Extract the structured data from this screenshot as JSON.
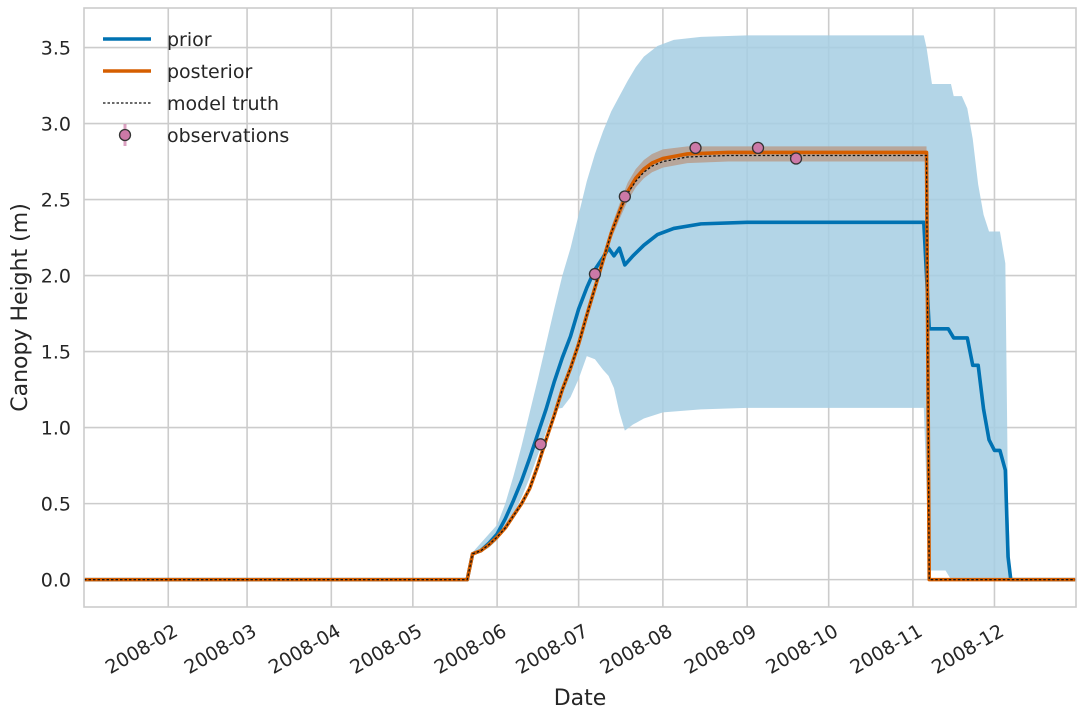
{
  "chart_data": {
    "type": "line",
    "title": "",
    "xlabel": "Date",
    "ylabel": "Canopy Height (m)",
    "x_is_date": true,
    "xlim": [
      "2008-01-01",
      "2008-12-31"
    ],
    "ylim": [
      -0.18,
      3.76
    ],
    "grid": true,
    "legend_position": "top-left",
    "x_ticks": [
      "2008-02-01",
      "2008-03-01",
      "2008-04-01",
      "2008-05-01",
      "2008-06-01",
      "2008-07-01",
      "2008-08-01",
      "2008-09-01",
      "2008-10-01",
      "2008-11-01",
      "2008-12-01"
    ],
    "x_tick_labels": [
      "2008-02",
      "2008-03",
      "2008-04",
      "2008-05",
      "2008-06",
      "2008-07",
      "2008-08",
      "2008-09",
      "2008-10",
      "2008-11",
      "2008-12"
    ],
    "y_ticks": [
      0.0,
      0.5,
      1.0,
      1.5,
      2.0,
      2.5,
      3.0,
      3.5
    ],
    "y_tick_labels": [
      "0.0",
      "0.5",
      "1.0",
      "1.5",
      "2.0",
      "2.5",
      "3.0",
      "3.5"
    ],
    "colors": {
      "prior": "#0072b2",
      "prior_band": "#a6cee3",
      "posterior": "#d55e00",
      "posterior_band": "#b7a192",
      "truth": "#111111",
      "obs_fill": "#cc79a7",
      "obs_edge": "#333333",
      "grid": "#cccccc",
      "frame": "#cccccc"
    },
    "series": [
      {
        "name": "prior",
        "kind": "line",
        "points": [
          [
            "2008-01-01",
            0
          ],
          [
            "2008-05-21",
            0
          ],
          [
            "2008-05-23",
            0.17
          ],
          [
            "2008-05-26",
            0.19
          ],
          [
            "2008-05-29",
            0.24
          ],
          [
            "2008-06-01",
            0.3
          ],
          [
            "2008-06-04",
            0.4
          ],
          [
            "2008-06-07",
            0.52
          ],
          [
            "2008-06-10",
            0.65
          ],
          [
            "2008-06-13",
            0.8
          ],
          [
            "2008-06-16",
            0.96
          ],
          [
            "2008-06-19",
            1.12
          ],
          [
            "2008-06-22",
            1.3
          ],
          [
            "2008-06-25",
            1.46
          ],
          [
            "2008-06-28",
            1.6
          ],
          [
            "2008-07-01",
            1.78
          ],
          [
            "2008-07-04",
            1.92
          ],
          [
            "2008-07-07",
            2.04
          ],
          [
            "2008-07-10",
            2.12
          ],
          [
            "2008-07-12",
            2.18
          ],
          [
            "2008-07-14",
            2.13
          ],
          [
            "2008-07-16",
            2.18
          ],
          [
            "2008-07-18",
            2.07
          ],
          [
            "2008-07-21",
            2.13
          ],
          [
            "2008-07-25",
            2.2
          ],
          [
            "2008-07-30",
            2.27
          ],
          [
            "2008-08-05",
            2.31
          ],
          [
            "2008-08-15",
            2.34
          ],
          [
            "2008-09-01",
            2.35
          ],
          [
            "2008-11-05",
            2.35
          ],
          [
            "2008-11-07",
            1.65
          ],
          [
            "2008-11-14",
            1.65
          ],
          [
            "2008-11-16",
            1.59
          ],
          [
            "2008-11-21",
            1.59
          ],
          [
            "2008-11-23",
            1.41
          ],
          [
            "2008-11-25",
            1.41
          ],
          [
            "2008-11-27",
            1.12
          ],
          [
            "2008-11-29",
            0.92
          ],
          [
            "2008-12-01",
            0.85
          ],
          [
            "2008-12-03",
            0.85
          ],
          [
            "2008-12-05",
            0.72
          ],
          [
            "2008-12-06",
            0.15
          ],
          [
            "2008-12-07",
            0
          ],
          [
            "2008-12-31",
            0
          ]
        ]
      },
      {
        "name": "prior_band",
        "kind": "band",
        "upper": [
          [
            "2008-01-01",
            0
          ],
          [
            "2008-05-21",
            0
          ],
          [
            "2008-05-23",
            0.18
          ],
          [
            "2008-05-26",
            0.24
          ],
          [
            "2008-05-29",
            0.3
          ],
          [
            "2008-06-01",
            0.36
          ],
          [
            "2008-06-04",
            0.5
          ],
          [
            "2008-06-07",
            0.68
          ],
          [
            "2008-06-10",
            0.88
          ],
          [
            "2008-06-13",
            1.1
          ],
          [
            "2008-06-16",
            1.32
          ],
          [
            "2008-06-19",
            1.55
          ],
          [
            "2008-06-22",
            1.78
          ],
          [
            "2008-06-25",
            2.0
          ],
          [
            "2008-06-28",
            2.18
          ],
          [
            "2008-07-01",
            2.4
          ],
          [
            "2008-07-04",
            2.62
          ],
          [
            "2008-07-07",
            2.8
          ],
          [
            "2008-07-10",
            2.95
          ],
          [
            "2008-07-13",
            3.08
          ],
          [
            "2008-07-16",
            3.18
          ],
          [
            "2008-07-19",
            3.28
          ],
          [
            "2008-07-22",
            3.37
          ],
          [
            "2008-07-25",
            3.44
          ],
          [
            "2008-07-30",
            3.51
          ],
          [
            "2008-08-05",
            3.55
          ],
          [
            "2008-08-15",
            3.57
          ],
          [
            "2008-09-01",
            3.58
          ],
          [
            "2008-11-05",
            3.58
          ],
          [
            "2008-11-06",
            3.5
          ],
          [
            "2008-11-08",
            3.26
          ],
          [
            "2008-11-15",
            3.26
          ],
          [
            "2008-11-16",
            3.18
          ],
          [
            "2008-11-19",
            3.18
          ],
          [
            "2008-11-21",
            3.1
          ],
          [
            "2008-11-23",
            2.9
          ],
          [
            "2008-11-25",
            2.6
          ],
          [
            "2008-11-27",
            2.4
          ],
          [
            "2008-11-29",
            2.29
          ],
          [
            "2008-12-03",
            2.29
          ],
          [
            "2008-12-05",
            2.08
          ],
          [
            "2008-12-06",
            0.5
          ],
          [
            "2008-12-07",
            0
          ],
          [
            "2008-12-31",
            0
          ]
        ],
        "lower": [
          [
            "2008-01-01",
            0
          ],
          [
            "2008-05-21",
            0
          ],
          [
            "2008-05-23",
            0.16
          ],
          [
            "2008-05-26",
            0.18
          ],
          [
            "2008-05-29",
            0.21
          ],
          [
            "2008-06-01",
            0.26
          ],
          [
            "2008-06-04",
            0.34
          ],
          [
            "2008-06-07",
            0.43
          ],
          [
            "2008-06-10",
            0.54
          ],
          [
            "2008-06-13",
            0.67
          ],
          [
            "2008-06-16",
            0.82
          ],
          [
            "2008-06-19",
            0.97
          ],
          [
            "2008-06-22",
            1.12
          ],
          [
            "2008-06-25",
            1.13
          ],
          [
            "2008-06-28",
            1.2
          ],
          [
            "2008-07-01",
            1.32
          ],
          [
            "2008-07-04",
            1.47
          ],
          [
            "2008-07-07",
            1.45
          ],
          [
            "2008-07-10",
            1.38
          ],
          [
            "2008-07-12",
            1.34
          ],
          [
            "2008-07-14",
            1.26
          ],
          [
            "2008-07-16",
            1.1
          ],
          [
            "2008-07-18",
            0.98
          ],
          [
            "2008-07-21",
            1.02
          ],
          [
            "2008-07-25",
            1.06
          ],
          [
            "2008-08-01",
            1.1
          ],
          [
            "2008-08-15",
            1.12
          ],
          [
            "2008-09-01",
            1.13
          ],
          [
            "2008-11-05",
            1.13
          ],
          [
            "2008-11-06",
            0.6
          ],
          [
            "2008-11-07",
            0.06
          ],
          [
            "2008-11-13",
            0.06
          ],
          [
            "2008-11-15",
            0
          ],
          [
            "2008-12-31",
            0
          ]
        ]
      },
      {
        "name": "posterior",
        "kind": "line",
        "points": [
          [
            "2008-01-01",
            0
          ],
          [
            "2008-05-21",
            0
          ],
          [
            "2008-05-23",
            0.17
          ],
          [
            "2008-05-26",
            0.19
          ],
          [
            "2008-05-29",
            0.23
          ],
          [
            "2008-06-01",
            0.28
          ],
          [
            "2008-06-04",
            0.34
          ],
          [
            "2008-06-07",
            0.42
          ],
          [
            "2008-06-10",
            0.5
          ],
          [
            "2008-06-13",
            0.6
          ],
          [
            "2008-06-16",
            0.75
          ],
          [
            "2008-06-19",
            0.92
          ],
          [
            "2008-06-22",
            1.08
          ],
          [
            "2008-06-25",
            1.25
          ],
          [
            "2008-06-28",
            1.39
          ],
          [
            "2008-07-01",
            1.55
          ],
          [
            "2008-07-04",
            1.74
          ],
          [
            "2008-07-07",
            1.92
          ],
          [
            "2008-07-10",
            2.1
          ],
          [
            "2008-07-13",
            2.28
          ],
          [
            "2008-07-16",
            2.42
          ],
          [
            "2008-07-19",
            2.55
          ],
          [
            "2008-07-22",
            2.64
          ],
          [
            "2008-07-25",
            2.7
          ],
          [
            "2008-07-28",
            2.74
          ],
          [
            "2008-08-01",
            2.77
          ],
          [
            "2008-08-10",
            2.8
          ],
          [
            "2008-08-25",
            2.81
          ],
          [
            "2008-11-06",
            2.81
          ],
          [
            "2008-11-07",
            0
          ],
          [
            "2008-12-31",
            0
          ]
        ]
      },
      {
        "name": "posterior_band",
        "kind": "band",
        "upper": [
          [
            "2008-07-13",
            2.32
          ],
          [
            "2008-07-16",
            2.47
          ],
          [
            "2008-07-19",
            2.61
          ],
          [
            "2008-07-22",
            2.7
          ],
          [
            "2008-07-25",
            2.76
          ],
          [
            "2008-07-28",
            2.8
          ],
          [
            "2008-08-01",
            2.83
          ],
          [
            "2008-08-10",
            2.85
          ],
          [
            "2008-08-25",
            2.85
          ],
          [
            "2008-11-06",
            2.85
          ]
        ],
        "lower": [
          [
            "2008-07-13",
            2.24
          ],
          [
            "2008-07-16",
            2.37
          ],
          [
            "2008-07-19",
            2.49
          ],
          [
            "2008-07-22",
            2.58
          ],
          [
            "2008-07-25",
            2.64
          ],
          [
            "2008-07-28",
            2.68
          ],
          [
            "2008-08-01",
            2.71
          ],
          [
            "2008-08-10",
            2.74
          ],
          [
            "2008-08-25",
            2.75
          ],
          [
            "2008-11-06",
            2.75
          ]
        ]
      },
      {
        "name": "model truth",
        "kind": "dotted",
        "points": [
          [
            "2008-01-01",
            0
          ],
          [
            "2008-05-21",
            0
          ],
          [
            "2008-05-23",
            0.17
          ],
          [
            "2008-05-26",
            0.19
          ],
          [
            "2008-05-29",
            0.23
          ],
          [
            "2008-06-01",
            0.28
          ],
          [
            "2008-06-04",
            0.34
          ],
          [
            "2008-06-07",
            0.42
          ],
          [
            "2008-06-10",
            0.5
          ],
          [
            "2008-06-13",
            0.6
          ],
          [
            "2008-06-16",
            0.75
          ],
          [
            "2008-06-19",
            0.92
          ],
          [
            "2008-06-22",
            1.08
          ],
          [
            "2008-06-25",
            1.25
          ],
          [
            "2008-06-28",
            1.39
          ],
          [
            "2008-07-01",
            1.55
          ],
          [
            "2008-07-04",
            1.74
          ],
          [
            "2008-07-07",
            1.92
          ],
          [
            "2008-07-10",
            2.1
          ],
          [
            "2008-07-13",
            2.28
          ],
          [
            "2008-07-16",
            2.42
          ],
          [
            "2008-07-19",
            2.54
          ],
          [
            "2008-07-22",
            2.62
          ],
          [
            "2008-07-25",
            2.68
          ],
          [
            "2008-07-28",
            2.72
          ],
          [
            "2008-08-01",
            2.75
          ],
          [
            "2008-08-10",
            2.78
          ],
          [
            "2008-08-25",
            2.79
          ],
          [
            "2008-11-06",
            2.79
          ],
          [
            "2008-11-07",
            0
          ],
          [
            "2008-12-31",
            0
          ]
        ]
      },
      {
        "name": "observations",
        "kind": "scatter",
        "points": [
          [
            "2008-06-17",
            0.89
          ],
          [
            "2008-07-07",
            2.01
          ],
          [
            "2008-07-18",
            2.52
          ],
          [
            "2008-08-13",
            2.84
          ],
          [
            "2008-09-05",
            2.84
          ],
          [
            "2008-09-19",
            2.77
          ]
        ]
      }
    ],
    "legend": [
      {
        "label": "prior",
        "marker": "line"
      },
      {
        "label": "posterior",
        "marker": "line"
      },
      {
        "label": "model truth",
        "marker": "dotted"
      },
      {
        "label": "observations",
        "marker": "point"
      }
    ]
  }
}
